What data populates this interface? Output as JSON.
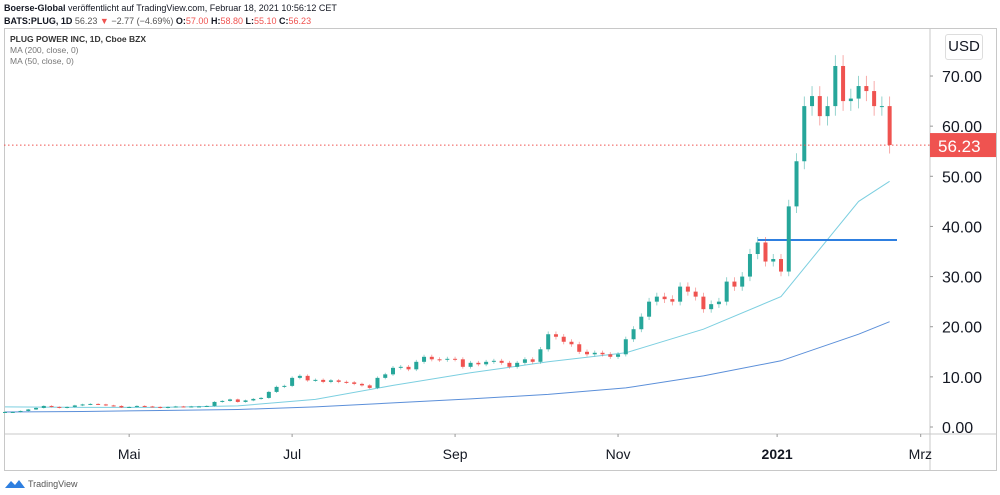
{
  "header": {
    "author": "Boerse-Global",
    "published": "veröffentlicht auf TradingView.com, Februar 18, 2021 10:56:12 CET",
    "symbol": "BATS:PLUG, 1D",
    "last": "56.23",
    "change": "−2.77 (−4.69%)",
    "o_label": "O:",
    "o": "57.00",
    "h_label": "H:",
    "h": "58.80",
    "l_label": "L:",
    "l": "55.10",
    "c_label": "C:",
    "c": "56.23"
  },
  "legend": {
    "title": "PLUG POWER INC, 1D, Cboe BZX",
    "ma200": "MA (200, close, 0)",
    "ma50": "MA (50, close, 0)"
  },
  "currency": "USD",
  "footer": {
    "brand": "TradingView"
  },
  "colors": {
    "up": "#26a69a",
    "down": "#ef5350",
    "ma50": "#7ccfe0",
    "ma200": "#5b8fd9",
    "hline": "#2e7fe0"
  },
  "chart_data": {
    "type": "candlestick",
    "title": "PLUG POWER INC, 1D, Cboe BZX",
    "y_ticks": [
      "0.00",
      "10.00",
      "20.00",
      "30.00",
      "40.00",
      "50.00",
      "60.00",
      "70.00"
    ],
    "y_tick_values": [
      0,
      10,
      20,
      30,
      40,
      50,
      60,
      70
    ],
    "ylim": [
      0,
      75
    ],
    "x_ticks": [
      "Mai",
      "Jul",
      "Sep",
      "Nov",
      "2021",
      "Mrz"
    ],
    "x_tick_bar_index": [
      16,
      37,
      58,
      79,
      99.5,
      118
    ],
    "last_price_label": "56.23",
    "last_price": 56.23,
    "close": [
      3.0,
      3.0,
      3.2,
      3.5,
      3.8,
      4.2,
      4.0,
      3.8,
      4.0,
      4.3,
      4.5,
      4.6,
      4.5,
      4.3,
      4.2,
      3.9,
      4.0,
      4.2,
      4.1,
      4.0,
      3.8,
      4.0,
      4.1,
      4.0,
      4.1,
      4.1,
      4.2,
      5.0,
      5.2,
      5.5,
      5.0,
      5.3,
      5.6,
      5.8,
      7.0,
      8.0,
      8.2,
      9.8,
      10.2,
      9.3,
      9.4,
      9.0,
      9.3,
      9.0,
      8.9,
      8.6,
      8.3,
      7.8,
      9.8,
      10.5,
      11.8,
      12.0,
      11.5,
      13.0,
      14.0,
      13.5,
      13.4,
      13.6,
      13.5,
      12.0,
      12.8,
      12.5,
      13.0,
      13.2,
      12.8,
      12.0,
      12.8,
      13.5,
      13.0,
      15.5,
      18.5,
      18.0,
      17.0,
      16.5,
      15.0,
      14.5,
      14.8,
      14.5,
      14.0,
      14.5,
      17.5,
      19.5,
      22.0,
      25.0,
      26.0,
      25.5,
      25.0,
      28.0,
      27.0,
      26.0,
      23.5,
      24.5,
      25.0,
      29.0,
      28.0,
      30.0,
      34.5,
      36.8,
      33.0,
      33.5,
      31.0,
      44.0,
      53.0,
      64.0,
      66.0,
      62.0,
      64.0,
      72.0,
      65.0,
      65.5,
      68.0,
      67.0,
      64.0,
      64.0,
      56.23
    ],
    "series": [
      {
        "name": "MA (50, close, 0)",
        "bar_index": [
          0,
          10,
          20,
          30,
          40,
          50,
          60,
          70,
          80,
          90,
          100,
          110,
          114
        ],
        "values": [
          4.0,
          3.9,
          3.9,
          4.2,
          5.5,
          8.3,
          10.8,
          13,
          14.8,
          19.5,
          26,
          45,
          49
        ]
      },
      {
        "name": "MA (200, close, 0)",
        "bar_index": [
          0,
          10,
          20,
          30,
          40,
          50,
          60,
          70,
          80,
          90,
          100,
          110,
          114
        ],
        "values": [
          3.0,
          3.1,
          3.3,
          3.5,
          4.0,
          4.8,
          5.6,
          6.5,
          7.8,
          10.2,
          13.2,
          18.5,
          21
        ]
      }
    ],
    "horizontal_line": {
      "value": 37.3,
      "from_bar_index": 97
    }
  }
}
